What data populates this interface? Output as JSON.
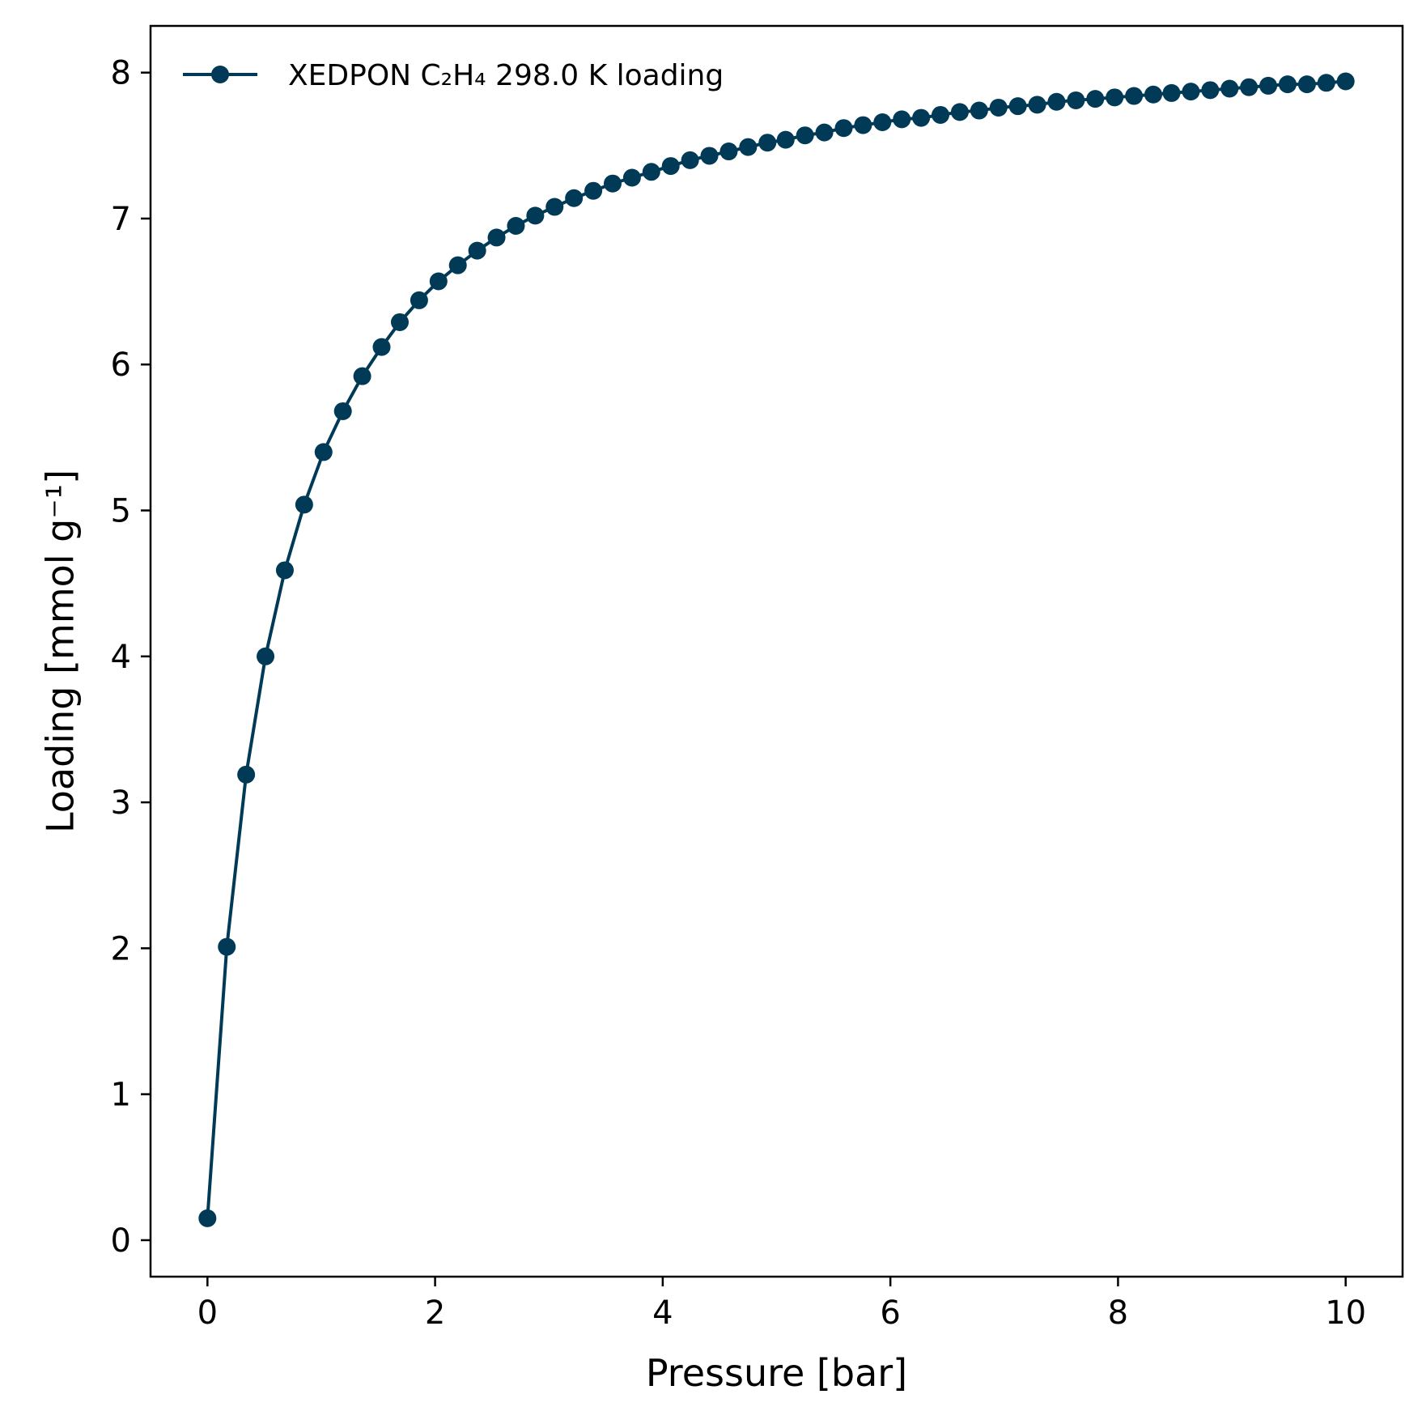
{
  "chart_data": {
    "type": "line",
    "xlabel": "Pressure [bar]",
    "ylabel": "Loading [mmol g⁻¹]",
    "xlim": [
      -0.5,
      10.5
    ],
    "ylim": [
      -0.25,
      8.32
    ],
    "xticks": [
      0,
      2,
      4,
      6,
      8,
      10
    ],
    "yticks": [
      0,
      1,
      2,
      3,
      4,
      5,
      6,
      7,
      8
    ],
    "grid": false,
    "legend_position": "top-left",
    "series": [
      {
        "name": "XEDPON C₂H₄ 298.0 K loading",
        "color": "#003a57",
        "marker": "circle",
        "x": [
          0.0,
          0.17,
          0.34,
          0.51,
          0.68,
          0.85,
          1.02,
          1.19,
          1.36,
          1.53,
          1.69,
          1.86,
          2.03,
          2.2,
          2.37,
          2.54,
          2.71,
          2.88,
          3.05,
          3.22,
          3.39,
          3.56,
          3.73,
          3.9,
          4.07,
          4.24,
          4.41,
          4.58,
          4.75,
          4.92,
          5.08,
          5.25,
          5.42,
          5.59,
          5.76,
          5.93,
          6.1,
          6.27,
          6.44,
          6.61,
          6.78,
          6.95,
          7.12,
          7.29,
          7.46,
          7.63,
          7.8,
          7.97,
          8.14,
          8.31,
          8.47,
          8.64,
          8.81,
          8.98,
          9.15,
          9.32,
          9.49,
          9.66,
          9.83,
          10.0
        ],
        "y": [
          0.15,
          2.01,
          3.19,
          4.0,
          4.59,
          5.04,
          5.4,
          5.68,
          5.92,
          6.12,
          6.29,
          6.44,
          6.57,
          6.68,
          6.78,
          6.87,
          6.95,
          7.02,
          7.08,
          7.14,
          7.19,
          7.24,
          7.28,
          7.32,
          7.36,
          7.4,
          7.43,
          7.46,
          7.49,
          7.52,
          7.54,
          7.57,
          7.59,
          7.62,
          7.64,
          7.66,
          7.68,
          7.69,
          7.71,
          7.73,
          7.74,
          7.76,
          7.77,
          7.78,
          7.8,
          7.81,
          7.82,
          7.83,
          7.84,
          7.85,
          7.86,
          7.87,
          7.88,
          7.89,
          7.9,
          7.91,
          7.92,
          7.92,
          7.93,
          7.94
        ]
      }
    ]
  }
}
